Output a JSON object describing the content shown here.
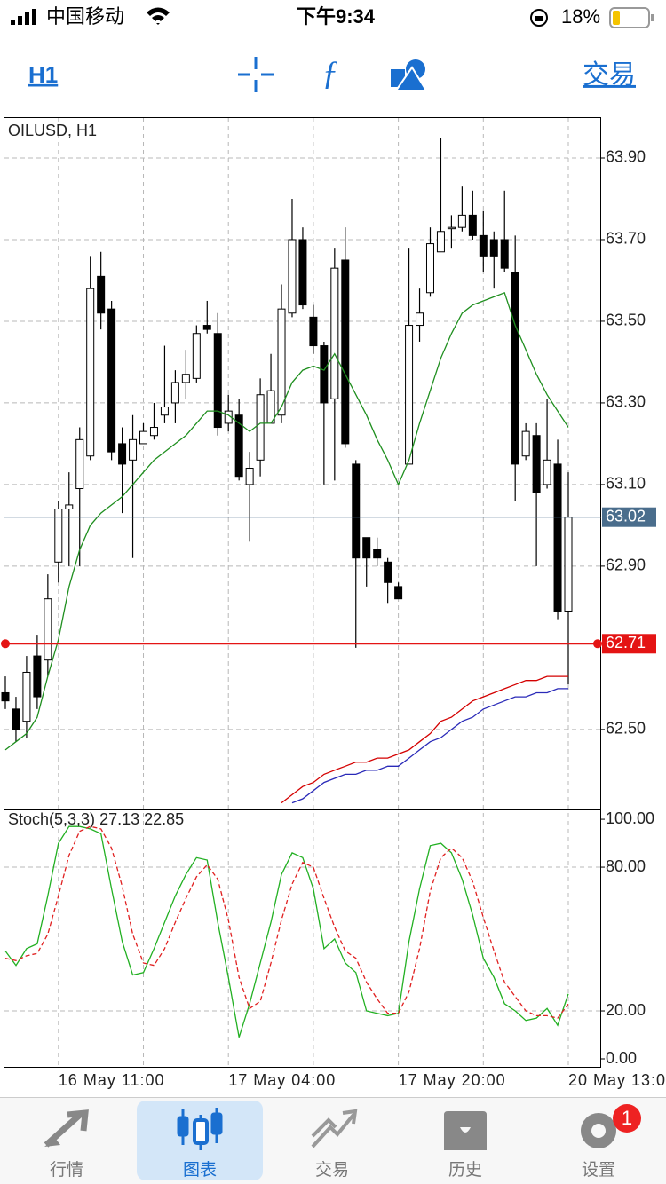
{
  "status_bar": {
    "carrier": "中国移动",
    "time": "下午9:34",
    "battery": "18%"
  },
  "toolbar": {
    "timeframe": "H1",
    "trade": "交易"
  },
  "chart_data": [
    {
      "type": "candlestick",
      "title": "OILUSD, H1",
      "categories": [
        null,
        null,
        null,
        null,
        null,
        "16 May 11:00",
        null,
        null,
        null,
        null,
        null,
        null,
        null,
        null,
        null,
        null,
        null,
        null,
        null,
        null,
        null,
        "17 May 04:00",
        null,
        null,
        null,
        null,
        null,
        null,
        null,
        null,
        null,
        null,
        null,
        null,
        null,
        null,
        null,
        "17 May 20:00",
        null,
        null,
        null,
        null,
        null,
        null,
        null,
        null,
        null,
        null,
        null,
        null,
        null,
        null,
        null,
        "20 May 13:00"
      ],
      "open": [
        62.59,
        62.55,
        62.52,
        62.68,
        62.67,
        62.91,
        63.04,
        63.09,
        63.17,
        63.61,
        63.53,
        63.2,
        63.16,
        63.2,
        63.22,
        63.27,
        63.3,
        63.35,
        63.36,
        63.49,
        63.47,
        63.25,
        63.27,
        63.1,
        63.16,
        63.25,
        63.27,
        63.52,
        63.7,
        63.51,
        63.44,
        63.31,
        63.65,
        63.15,
        62.97,
        62.94,
        62.91,
        62.85,
        63.15,
        63.49,
        63.57,
        63.67,
        63.73,
        63.73,
        63.76,
        63.71,
        63.7,
        63.7,
        63.62,
        63.17,
        63.22,
        63.1,
        63.15,
        62.79
      ],
      "high": [
        62.63,
        62.58,
        62.68,
        62.73,
        62.88,
        63.06,
        63.13,
        63.24,
        63.66,
        63.67,
        63.55,
        63.24,
        63.27,
        63.25,
        63.3,
        63.44,
        63.38,
        63.43,
        63.49,
        63.55,
        63.52,
        63.32,
        63.31,
        63.18,
        63.36,
        63.42,
        63.59,
        63.8,
        63.73,
        63.54,
        63.45,
        63.68,
        63.73,
        63.16,
        62.97,
        62.97,
        62.92,
        62.86,
        63.68,
        63.58,
        63.73,
        63.95,
        63.76,
        63.83,
        63.82,
        63.77,
        63.72,
        63.82,
        63.71,
        63.25,
        63.25,
        63.31,
        63.21,
        63.13
      ],
      "low": [
        62.55,
        62.47,
        62.48,
        62.55,
        62.63,
        62.86,
        62.9,
        62.9,
        63.16,
        63.48,
        63.16,
        63.03,
        62.92,
        63.2,
        63.21,
        63.25,
        63.25,
        63.31,
        63.35,
        63.47,
        63.22,
        63.23,
        63.11,
        62.96,
        63.12,
        63.25,
        63.25,
        63.51,
        63.53,
        63.42,
        63.1,
        63.11,
        63.19,
        62.7,
        62.85,
        62.9,
        62.81,
        62.82,
        63.15,
        63.45,
        63.56,
        63.67,
        63.68,
        63.72,
        63.7,
        63.62,
        63.58,
        63.62,
        63.06,
        63.16,
        62.9,
        63.09,
        62.77,
        62.61
      ],
      "close": [
        62.57,
        62.5,
        62.64,
        62.58,
        62.82,
        63.04,
        63.05,
        63.21,
        63.58,
        63.52,
        63.18,
        63.15,
        63.21,
        63.23,
        63.24,
        63.29,
        63.35,
        63.37,
        63.47,
        63.48,
        63.24,
        63.28,
        63.12,
        63.14,
        63.32,
        63.33,
        63.53,
        63.7,
        63.54,
        63.44,
        63.3,
        63.63,
        63.2,
        62.92,
        62.92,
        62.92,
        62.86,
        62.82,
        63.49,
        63.52,
        63.69,
        63.72,
        63.73,
        63.76,
        63.71,
        63.66,
        63.66,
        63.63,
        63.15,
        63.23,
        63.08,
        63.16,
        62.79,
        63.02
      ],
      "series": [
        {
          "color": "#1f8f1f",
          "values": [
            62.45,
            62.47,
            62.49,
            62.53,
            62.63,
            62.72,
            62.85,
            62.94,
            63.0,
            63.03,
            63.05,
            63.07,
            63.1,
            63.13,
            63.16,
            63.18,
            63.2,
            63.22,
            63.25,
            63.28,
            63.28,
            63.27,
            63.25,
            63.23,
            63.25,
            63.25,
            63.29,
            63.35,
            63.38,
            63.39,
            63.38,
            63.42,
            63.37,
            63.32,
            63.27,
            63.21,
            63.16,
            63.1,
            63.16,
            63.25,
            63.33,
            63.41,
            63.47,
            63.52,
            63.54,
            63.55,
            63.56,
            63.57,
            63.49,
            63.43,
            63.37,
            63.32,
            63.28,
            63.24
          ]
        },
        {
          "color": "#d40000",
          "values": [
            null,
            null,
            null,
            null,
            null,
            null,
            null,
            null,
            null,
            null,
            null,
            null,
            null,
            null,
            null,
            null,
            null,
            null,
            null,
            null,
            null,
            null,
            null,
            null,
            null,
            null,
            62.32,
            62.34,
            62.36,
            62.37,
            62.39,
            62.4,
            62.41,
            62.42,
            62.42,
            62.43,
            62.43,
            62.44,
            62.45,
            62.47,
            62.49,
            62.52,
            62.53,
            62.55,
            62.57,
            62.58,
            62.59,
            62.6,
            62.61,
            62.62,
            62.62,
            62.63,
            62.63,
            62.63
          ]
        },
        {
          "color": "#2a2ab8",
          "values": [
            null,
            null,
            null,
            null,
            null,
            null,
            null,
            null,
            null,
            null,
            null,
            null,
            null,
            null,
            null,
            null,
            null,
            null,
            null,
            null,
            null,
            null,
            null,
            null,
            null,
            null,
            null,
            62.32,
            62.33,
            62.35,
            62.37,
            62.38,
            62.39,
            62.39,
            62.4,
            62.4,
            62.41,
            62.41,
            62.43,
            62.45,
            62.47,
            62.48,
            62.5,
            62.52,
            62.53,
            62.55,
            62.56,
            62.57,
            62.58,
            62.58,
            62.59,
            62.59,
            62.6,
            62.6
          ]
        }
      ],
      "level": 62.71,
      "level_color": "#e41414",
      "ylim": [
        62.304,
        64.0
      ],
      "yticks": [
        {
          "value": 62.5,
          "label": "62.50"
        },
        {
          "value": 62.9,
          "label": "62.90"
        },
        {
          "value": 63.1,
          "label": "63.10"
        },
        {
          "value": 63.3,
          "label": "63.30"
        },
        {
          "value": 63.5,
          "label": "63.50"
        },
        {
          "value": 63.7,
          "label": "63.70"
        },
        {
          "value": 63.9,
          "label": "63.90"
        }
      ],
      "grid": true
    },
    {
      "type": "line",
      "title": "Stoch(5,3,3)",
      "series": [
        {
          "color": "#22b022",
          "dashed": false,
          "values": [
            45,
            39,
            46,
            48,
            68,
            90,
            97,
            97,
            96,
            94,
            71,
            49,
            35,
            36,
            46,
            57,
            68,
            77,
            84,
            83,
            57,
            34,
            9,
            23,
            40,
            57,
            77,
            86,
            84,
            71,
            46,
            50,
            40,
            36,
            20,
            19,
            18,
            19,
            49,
            71,
            89,
            90,
            86,
            75,
            60,
            42,
            34,
            23,
            20,
            16,
            17,
            21,
            14,
            27.13
          ]
        },
        {
          "color": "#e02020",
          "dashed": true,
          "values": [
            42,
            41,
            43,
            44,
            52,
            68,
            85,
            95,
            97,
            96,
            88,
            72,
            52,
            40,
            39,
            46,
            57,
            67,
            76,
            81,
            75,
            58,
            34,
            21,
            24,
            40,
            58,
            73,
            82,
            80,
            67,
            55,
            45,
            42,
            32,
            25,
            19,
            19,
            28,
            46,
            70,
            84,
            88,
            84,
            74,
            59,
            45,
            32,
            26,
            20,
            18,
            18,
            17,
            22.85
          ]
        }
      ],
      "ylim": [
        -3.7,
        104.1
      ],
      "yticks": [
        {
          "value": 0,
          "label": "0.00"
        },
        {
          "value": 20,
          "label": "20.00"
        },
        {
          "value": 80,
          "label": "80.00"
        },
        {
          "value": 100,
          "label": "100.00"
        }
      ],
      "grid_values": [
        20,
        80
      ]
    }
  ],
  "tabs": [
    {
      "label": "行情"
    },
    {
      "label": "图表"
    },
    {
      "label": "交易"
    },
    {
      "label": "历史"
    },
    {
      "label": "设置",
      "badge": "1"
    }
  ]
}
